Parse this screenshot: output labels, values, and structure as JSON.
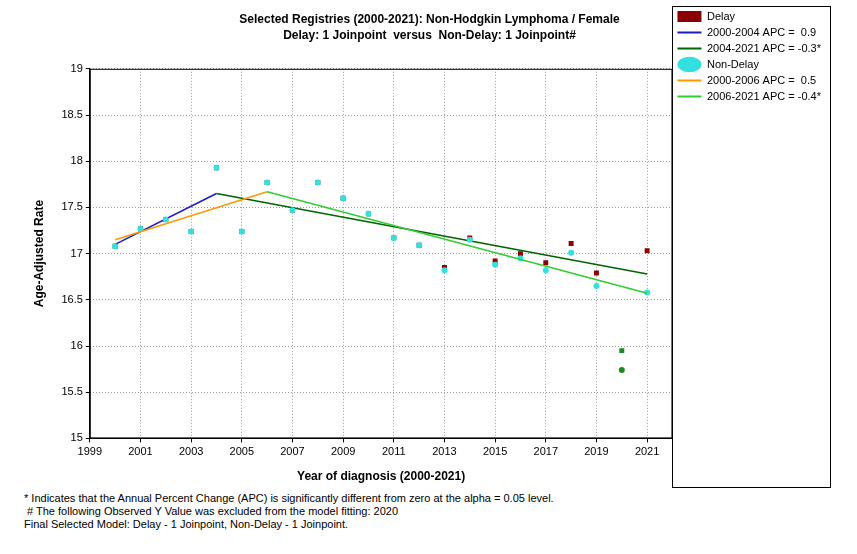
{
  "chart_data": {
    "type": "scatter",
    "title": "Selected Registries (2000-2021): Non-Hodgkin Lymphoma / Female",
    "subtitle": "Delay: 1 Joinpoint  versus  Non-Delay: 1 Joinpoint#",
    "x_label": "Year of diagnosis (2000-2021)",
    "y_label": "Age-Adjusted Rate",
    "xlim": [
      1999,
      2022
    ],
    "xticks": [
      1999,
      2001,
      2003,
      2005,
      2007,
      2009,
      2011,
      2013,
      2015,
      2017,
      2019,
      2021
    ],
    "ylim": [
      15,
      19
    ],
    "yticks": [
      15,
      15.5,
      16,
      16.5,
      17,
      17.5,
      18,
      18.5,
      19
    ],
    "grid": true,
    "legend": "top-right",
    "series": [
      {
        "name": "Delay",
        "type": "scatter",
        "marker": "square",
        "color": "#8b0000",
        "colors": [
          "#8b0000",
          "#8b0000",
          "#8b0000",
          "#8b0000",
          "#8b0000",
          "#8b0000",
          "#8b0000",
          "#8b0000",
          "#8b0000",
          "#8b0000",
          "#8b0000",
          "#8b0000",
          "#8b0000",
          "#8b0000",
          "#8b0000",
          "#8b0000",
          "#8b0000",
          "#8b0000",
          "#8b0000",
          "#8b0000",
          "#1a8a1a",
          "#8b0000"
        ],
        "x": [
          2000,
          2001,
          2002,
          2003,
          2004,
          2005,
          2006,
          2007,
          2008,
          2009,
          2010,
          2011,
          2012,
          2013,
          2014,
          2015,
          2016,
          2017,
          2018,
          2019,
          2020,
          2021
        ],
        "values": [
          17.08,
          17.27,
          17.37,
          17.24,
          17.93,
          17.24,
          17.77,
          17.47,
          17.77,
          17.6,
          17.43,
          17.17,
          17.09,
          16.85,
          17.17,
          16.92,
          17.0,
          16.9,
          17.11,
          16.79,
          15.95,
          17.03
        ]
      },
      {
        "name": "2000-2004 APC =  0.9",
        "type": "line",
        "line_style": "solid",
        "color": "#1c1cc4",
        "x": [
          2000,
          2004
        ],
        "values": [
          17.1,
          17.65
        ]
      },
      {
        "name": "2004-2021 APC = -0.3*",
        "type": "line",
        "line_style": "solid",
        "color": "#006400",
        "x": [
          2004,
          2021
        ],
        "values": [
          17.65,
          16.78
        ]
      },
      {
        "name": "Non-Delay",
        "type": "scatter",
        "marker": "circle",
        "color": "#33e0e0",
        "colors": [
          "#33e0e0",
          "#33e0e0",
          "#33e0e0",
          "#33e0e0",
          "#33e0e0",
          "#33e0e0",
          "#33e0e0",
          "#33e0e0",
          "#33e0e0",
          "#33e0e0",
          "#33e0e0",
          "#33e0e0",
          "#33e0e0",
          "#33e0e0",
          "#33e0e0",
          "#33e0e0",
          "#33e0e0",
          "#33e0e0",
          "#33e0e0",
          "#33e0e0",
          "#1a8a1a",
          "#33e0e0"
        ],
        "x": [
          2000,
          2001,
          2002,
          2003,
          2004,
          2005,
          2006,
          2007,
          2008,
          2009,
          2010,
          2011,
          2012,
          2013,
          2014,
          2015,
          2016,
          2017,
          2018,
          2019,
          2020,
          2021
        ],
        "values": [
          17.08,
          17.27,
          17.37,
          17.24,
          17.93,
          17.24,
          17.77,
          17.47,
          17.77,
          17.6,
          17.43,
          17.17,
          17.09,
          16.82,
          17.15,
          16.88,
          16.95,
          16.82,
          17.01,
          16.65,
          15.74,
          16.58
        ]
      },
      {
        "name": "2000-2006 APC =  0.5",
        "type": "line",
        "line_style": "solid",
        "color": "#ff9900",
        "x": [
          2000,
          2006
        ],
        "values": [
          17.15,
          17.67
        ]
      },
      {
        "name": "2006-2021 APC = -0.4*",
        "type": "line",
        "line_style": "solid",
        "color": "#33cc33",
        "x": [
          2006,
          2021
        ],
        "values": [
          17.67,
          16.57
        ]
      }
    ],
    "annotations": [
      "* Indicates that the Annual Percent Change (APC) is significantly different from zero at the alpha = 0.05 level.",
      " # The following Observed Y Value was excluded from the model fitting: 2020",
      "Final Selected Model: Delay - 1 Joinpoint, Non-Delay - 1 Joinpoint."
    ]
  }
}
